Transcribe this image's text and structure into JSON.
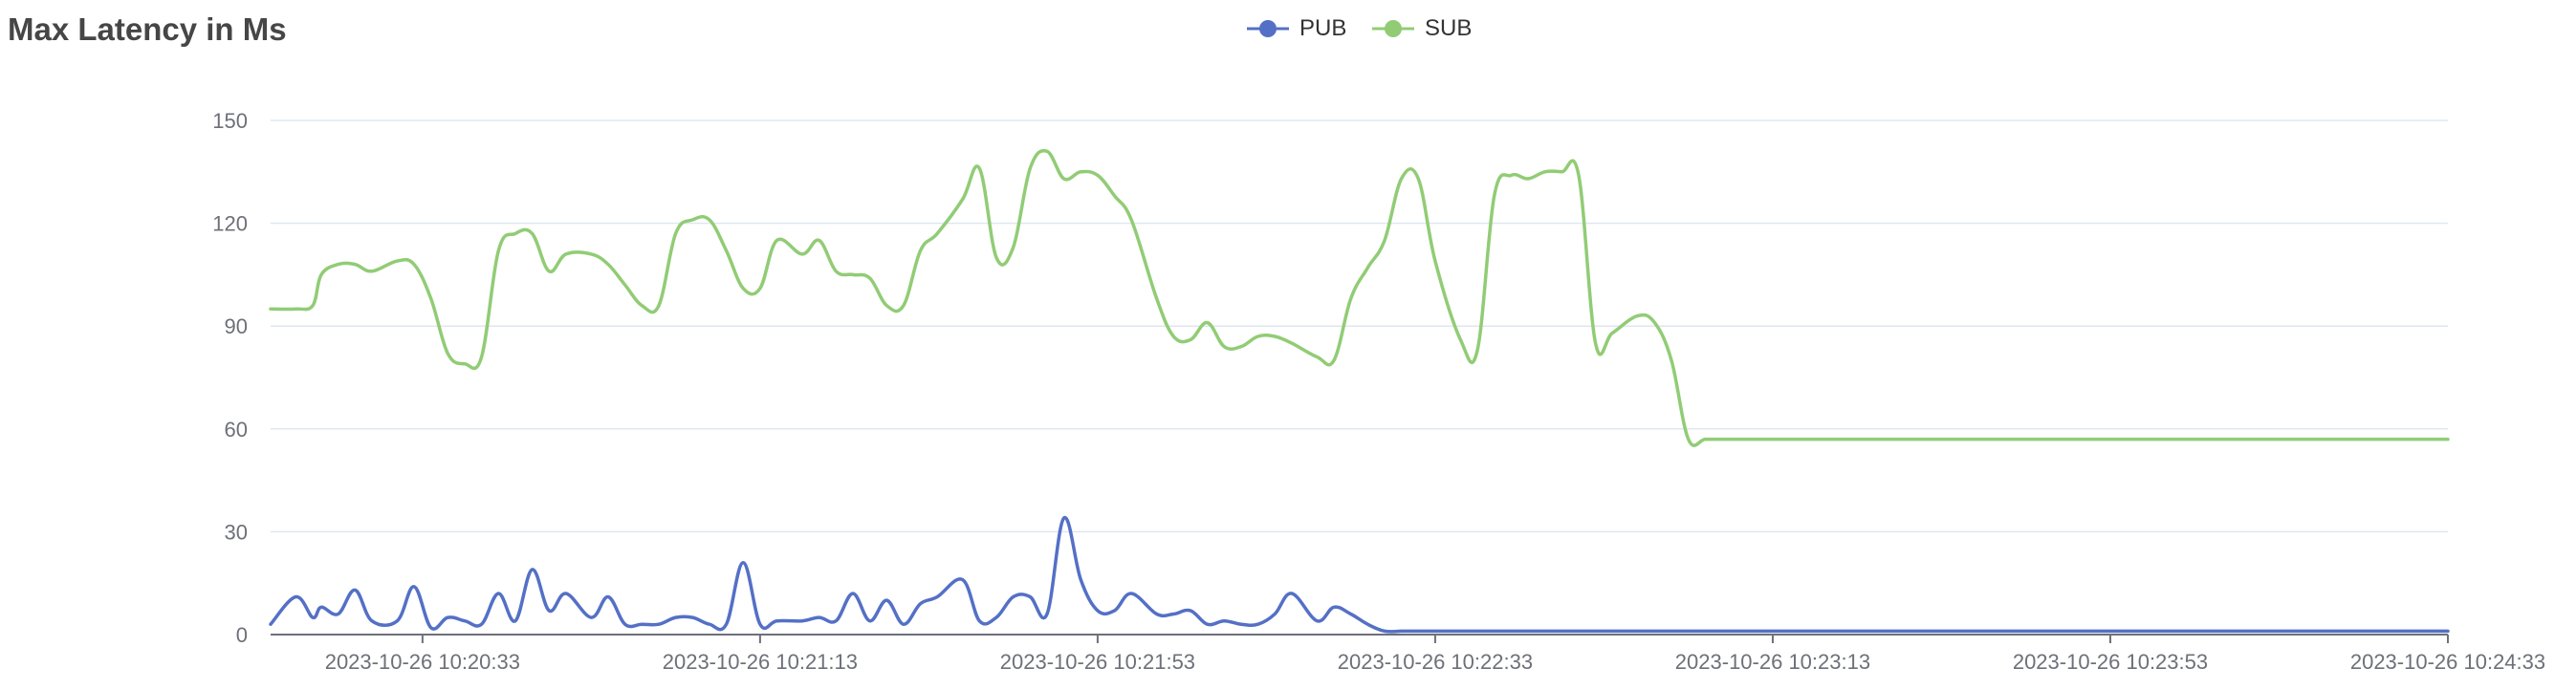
{
  "chart_data": {
    "type": "line",
    "title": "Max Latency in Ms",
    "xlabel": "",
    "ylabel": "",
    "ylim": [
      0,
      150
    ],
    "yticks": [
      0,
      30,
      60,
      90,
      120,
      150
    ],
    "xlim": [
      "2023-10-26 10:20:15",
      "2023-10-26 10:24:33"
    ],
    "xticks": [
      "2023-10-26 10:20:33",
      "2023-10-26 10:21:13",
      "2023-10-26 10:21:53",
      "2023-10-26 10:22:33",
      "2023-10-26 10:23:13",
      "2023-10-26 10:23:53",
      "2023-10-26 10:24:33"
    ],
    "grid": true,
    "legend_position": "top-center",
    "smooth": true,
    "x": [
      "2023-10-26 10:20:15",
      "2023-10-26 10:20:18",
      "2023-10-26 10:20:20",
      "2023-10-26 10:20:21",
      "2023-10-26 10:20:23",
      "2023-10-26 10:20:25",
      "2023-10-26 10:20:27",
      "2023-10-26 10:20:30",
      "2023-10-26 10:20:32",
      "2023-10-26 10:20:34",
      "2023-10-26 10:20:36",
      "2023-10-26 10:20:38",
      "2023-10-26 10:20:40",
      "2023-10-26 10:20:42",
      "2023-10-26 10:20:44",
      "2023-10-26 10:20:46",
      "2023-10-26 10:20:48",
      "2023-10-26 10:20:50",
      "2023-10-26 10:20:53",
      "2023-10-26 10:20:55",
      "2023-10-26 10:20:57",
      "2023-10-26 10:20:59",
      "2023-10-26 10:21:01",
      "2023-10-26 10:21:03",
      "2023-10-26 10:21:05",
      "2023-10-26 10:21:07",
      "2023-10-26 10:21:09",
      "2023-10-26 10:21:11",
      "2023-10-26 10:21:13",
      "2023-10-26 10:21:15",
      "2023-10-26 10:21:18",
      "2023-10-26 10:21:20",
      "2023-10-26 10:21:22",
      "2023-10-26 10:21:24",
      "2023-10-26 10:21:26",
      "2023-10-26 10:21:28",
      "2023-10-26 10:21:30",
      "2023-10-26 10:21:32",
      "2023-10-26 10:21:34",
      "2023-10-26 10:21:37",
      "2023-10-26 10:21:39",
      "2023-10-26 10:21:41",
      "2023-10-26 10:21:43",
      "2023-10-26 10:21:45",
      "2023-10-26 10:21:47",
      "2023-10-26 10:21:49",
      "2023-10-26 10:21:51",
      "2023-10-26 10:21:53",
      "2023-10-26 10:21:55",
      "2023-10-26 10:21:57",
      "2023-10-26 10:22:00",
      "2023-10-26 10:22:02",
      "2023-10-26 10:22:04",
      "2023-10-26 10:22:06",
      "2023-10-26 10:22:08",
      "2023-10-26 10:22:10",
      "2023-10-26 10:22:12",
      "2023-10-26 10:22:14",
      "2023-10-26 10:22:16",
      "2023-10-26 10:22:19",
      "2023-10-26 10:22:21",
      "2023-10-26 10:22:23",
      "2023-10-26 10:22:25",
      "2023-10-26 10:22:27",
      "2023-10-26 10:22:29",
      "2023-10-26 10:22:31",
      "2023-10-26 10:22:33",
      "2023-10-26 10:22:36",
      "2023-10-26 10:22:38",
      "2023-10-26 10:22:40",
      "2023-10-26 10:22:42",
      "2023-10-26 10:22:44",
      "2023-10-26 10:22:46",
      "2023-10-26 10:22:48",
      "2023-10-26 10:22:50",
      "2023-10-26 10:22:52",
      "2023-10-26 10:22:54",
      "2023-10-26 10:22:57",
      "2023-10-26 10:22:59",
      "2023-10-26 10:23:01",
      "2023-10-26 10:23:03",
      "2023-10-26 10:23:05",
      "2023-10-26 10:23:07",
      "2023-10-26 10:23:09",
      "2023-10-26 10:23:11",
      "2023-10-26 10:23:13",
      "2023-10-26 10:23:15",
      "2023-10-26 10:23:17",
      "2023-10-26 10:23:20",
      "2023-10-26 10:23:22",
      "2023-10-26 10:23:24",
      "2023-10-26 10:23:26",
      "2023-10-26 10:23:28",
      "2023-10-26 10:23:30",
      "2023-10-26 10:23:32",
      "2023-10-26 10:23:34",
      "2023-10-26 10:23:36",
      "2023-10-26 10:23:39",
      "2023-10-26 10:23:41",
      "2023-10-26 10:23:43",
      "2023-10-26 10:23:45",
      "2023-10-26 10:23:47",
      "2023-10-26 10:23:49",
      "2023-10-26 10:23:51",
      "2023-10-26 10:23:53",
      "2023-10-26 10:23:55",
      "2023-10-26 10:23:57",
      "2023-10-26 10:23:59",
      "2023-10-26 10:24:01",
      "2023-10-26 10:24:04",
      "2023-10-26 10:24:06",
      "2023-10-26 10:24:08",
      "2023-10-26 10:24:10",
      "2023-10-26 10:24:12",
      "2023-10-26 10:24:14",
      "2023-10-26 10:24:16",
      "2023-10-26 10:24:18",
      "2023-10-26 10:24:20",
      "2023-10-26 10:24:23",
      "2023-10-26 10:24:25",
      "2023-10-26 10:24:27",
      "2023-10-26 10:24:29",
      "2023-10-26 10:24:31",
      "2023-10-26 10:24:33"
    ],
    "series": [
      {
        "name": "PUB",
        "color": "#5470c6",
        "values": [
          3,
          11,
          5,
          8,
          6,
          13,
          4,
          4,
          14,
          2,
          5,
          4,
          3,
          12,
          4,
          19,
          7,
          12,
          5,
          11,
          3,
          3,
          3,
          5,
          5,
          3,
          3,
          21,
          3,
          4,
          4,
          5,
          4,
          12,
          4,
          10,
          3,
          9,
          11,
          16,
          4,
          5,
          11,
          11,
          6,
          34,
          16,
          7,
          7,
          12,
          6,
          6,
          7,
          3,
          4,
          3,
          3,
          6,
          12,
          4,
          8,
          6,
          3,
          1,
          1,
          1,
          1,
          1,
          1,
          1,
          1,
          1,
          1,
          1,
          1,
          1,
          1,
          1,
          1,
          1,
          1,
          1,
          1,
          1,
          1,
          1,
          1,
          1,
          1,
          1,
          1,
          1,
          1,
          1,
          1,
          1,
          1,
          1,
          1,
          1,
          1,
          1,
          1,
          1,
          1,
          1,
          1,
          1,
          1,
          1,
          1,
          1,
          1,
          1,
          1,
          1,
          1,
          1,
          1,
          1,
          1,
          1,
          1,
          1
        ]
      },
      {
        "name": "SUB",
        "color": "#91cc75",
        "values": [
          95,
          95,
          96,
          105,
          108,
          108,
          106,
          109,
          108,
          98,
          82,
          79,
          81,
          112,
          117,
          117,
          106,
          111,
          111,
          108,
          102,
          96,
          96,
          117,
          121,
          121,
          112,
          101,
          101,
          115,
          111,
          115,
          106,
          105,
          104,
          96,
          96,
          112,
          117,
          127,
          136,
          110,
          113,
          136,
          141,
          133,
          135,
          134,
          128,
          121,
          98,
          87,
          86,
          91,
          84,
          84,
          87,
          87,
          85,
          81,
          80,
          98,
          107,
          115,
          133,
          133,
          109,
          86,
          83,
          128,
          134,
          133,
          135,
          135,
          134,
          85,
          88,
          93,
          91,
          80,
          57,
          57,
          57,
          57,
          57,
          57,
          57,
          57,
          57,
          57,
          57,
          57,
          57,
          57,
          57,
          57,
          57,
          57,
          57,
          57,
          57,
          57,
          57,
          57,
          57,
          57,
          57,
          57,
          57,
          57,
          57,
          57,
          57,
          57,
          57,
          57,
          57,
          57,
          57,
          57,
          57,
          57,
          57,
          57
        ]
      }
    ]
  }
}
